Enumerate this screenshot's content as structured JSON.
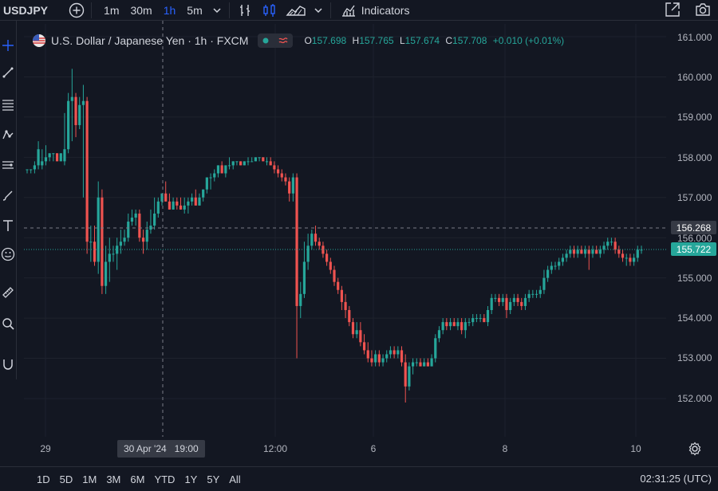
{
  "topbar": {
    "symbol": "USDJPY",
    "intervals": [
      "1m",
      "30m",
      "1h",
      "5m"
    ],
    "active_interval": "1h",
    "indicators_label": "Indicators"
  },
  "legend": {
    "title": "U.S. Dollar / Japanese Yen · 1h · FXCM",
    "open_label": "O",
    "open": "157.698",
    "high_label": "H",
    "high": "157.765",
    "low_label": "L",
    "low": "157.674",
    "close_label": "C",
    "close": "157.708",
    "change": "+0.010 (+0.01%)"
  },
  "price_axis": {
    "labels": [
      "161.000",
      "160.000",
      "159.000",
      "158.000",
      "157.000",
      "156.000",
      "155.000",
      "154.000",
      "153.000",
      "152.000"
    ],
    "crosshair_price": "156.268",
    "last_price": "155.722"
  },
  "time_axis": {
    "labels": [
      "29",
      "12:00",
      "6",
      "8",
      "10"
    ],
    "crosshair_time": "30 Apr '24   19:00"
  },
  "bottombar": {
    "ranges": [
      "1D",
      "5D",
      "1M",
      "3M",
      "6M",
      "YTD",
      "1Y",
      "5Y",
      "All"
    ],
    "clock": "02:31:25 (UTC)"
  },
  "colors": {
    "up": "#26a69a",
    "down": "#ef5350",
    "background": "#131722",
    "accent": "#2962ff"
  },
  "chart_data": {
    "type": "candlestick",
    "ylim": [
      151.5,
      161.2
    ],
    "points": [
      [
        0,
        157.7,
        157.7,
        157.6,
        157.7
      ],
      [
        1,
        157.7,
        157.7,
        157.6,
        157.7
      ],
      [
        2,
        157.7,
        157.9,
        157.6,
        157.8
      ],
      [
        3,
        157.8,
        158.4,
        157.7,
        158.2
      ],
      [
        4,
        157.8,
        158.2,
        157.7,
        157.9
      ],
      [
        5,
        157.9,
        158.3,
        157.8,
        158.0
      ],
      [
        6,
        158.0,
        158.1,
        157.9,
        158.1
      ],
      [
        7,
        158.1,
        158.1,
        157.9,
        158.1
      ],
      [
        8,
        158.1,
        158.1,
        157.9,
        157.9
      ],
      [
        9,
        157.9,
        158.1,
        157.9,
        158.1
      ],
      [
        10,
        157.9,
        159.1,
        157.8,
        158.2
      ],
      [
        11,
        158.2,
        159.6,
        158.1,
        159.4
      ],
      [
        12,
        159.4,
        160.2,
        158.4,
        159.5
      ],
      [
        13,
        159.5,
        159.6,
        158.5,
        158.8
      ],
      [
        14,
        158.8,
        159.5,
        158.7,
        159.3
      ],
      [
        15,
        159.3,
        159.8,
        157.0,
        159.4
      ],
      [
        16,
        159.4,
        159.5,
        155.6,
        155.9
      ],
      [
        17,
        155.9,
        156.3,
        155.4,
        155.9
      ],
      [
        18,
        155.9,
        156.3,
        155.3,
        155.4
      ],
      [
        19,
        155.4,
        157.4,
        155.1,
        157.0
      ],
      [
        20,
        157.0,
        157.2,
        154.6,
        154.8
      ],
      [
        21,
        154.8,
        155.8,
        154.6,
        155.4
      ],
      [
        22,
        155.4,
        156.0,
        154.9,
        155.6
      ],
      [
        23,
        155.6,
        155.8,
        155.4,
        155.6
      ],
      [
        24,
        155.6,
        156.0,
        155.2,
        155.8
      ],
      [
        25,
        155.8,
        156.2,
        155.6,
        155.9
      ],
      [
        26,
        155.9,
        156.2,
        155.8,
        156.0
      ],
      [
        27,
        156.0,
        156.6,
        155.9,
        156.4
      ],
      [
        28,
        156.4,
        156.7,
        156.3,
        156.5
      ],
      [
        29,
        156.5,
        156.7,
        156.3,
        156.6
      ],
      [
        30,
        156.6,
        156.7,
        155.9,
        156.0
      ],
      [
        31,
        156.0,
        156.2,
        155.6,
        155.9
      ],
      [
        32,
        155.9,
        156.4,
        155.7,
        156.2
      ],
      [
        33,
        156.2,
        156.7,
        156.1,
        156.3
      ],
      [
        34,
        156.3,
        157.0,
        156.2,
        156.6
      ],
      [
        35,
        156.6,
        157.0,
        156.5,
        156.9
      ],
      [
        36,
        156.9,
        157.1,
        156.8,
        157.1
      ],
      [
        37,
        157.1,
        157.4,
        156.9,
        156.9
      ],
      [
        38,
        156.9,
        157.1,
        156.7,
        156.7
      ],
      [
        39,
        156.7,
        157.0,
        156.7,
        156.9
      ],
      [
        40,
        156.9,
        157.0,
        156.7,
        156.8
      ],
      [
        41,
        156.8,
        157.0,
        156.7,
        156.7
      ],
      [
        42,
        156.7,
        157.0,
        156.6,
        156.8
      ],
      [
        43,
        156.8,
        157.0,
        156.6,
        156.9
      ],
      [
        44,
        156.9,
        157.1,
        156.8,
        157.0
      ],
      [
        45,
        157.0,
        157.2,
        156.8,
        156.8
      ],
      [
        46,
        156.8,
        157.1,
        156.8,
        157.0
      ],
      [
        47,
        157.0,
        157.2,
        156.9,
        157.2
      ],
      [
        48,
        157.2,
        157.5,
        157.1,
        157.5
      ],
      [
        49,
        157.5,
        157.6,
        157.2,
        157.5
      ],
      [
        50,
        157.5,
        157.7,
        157.4,
        157.6
      ],
      [
        51,
        157.6,
        157.8,
        157.5,
        157.8
      ],
      [
        52,
        157.8,
        157.9,
        157.6,
        157.6
      ],
      [
        53,
        157.6,
        157.8,
        157.5,
        157.8
      ],
      [
        54,
        157.8,
        158.0,
        157.7,
        157.8
      ],
      [
        55,
        157.8,
        157.9,
        157.7,
        157.9
      ],
      [
        56,
        157.9,
        157.9,
        157.8,
        157.9
      ],
      [
        57,
        157.9,
        157.9,
        157.8,
        157.8
      ],
      [
        58,
        157.8,
        157.9,
        157.8,
        157.9
      ],
      [
        59,
        157.9,
        158.0,
        157.8,
        157.9
      ],
      [
        60,
        157.9,
        158.0,
        157.9,
        157.9
      ],
      [
        61,
        157.9,
        158.0,
        157.9,
        158.0
      ],
      [
        62,
        158.0,
        158.0,
        157.9,
        158.0
      ],
      [
        63,
        158.0,
        158.0,
        157.9,
        157.9
      ],
      [
        64,
        157.9,
        158.0,
        157.8,
        157.9
      ],
      [
        65,
        157.9,
        158.0,
        157.8,
        157.8
      ],
      [
        66,
        157.8,
        157.9,
        157.6,
        157.7
      ],
      [
        67,
        157.7,
        157.8,
        157.5,
        157.6
      ],
      [
        68,
        157.6,
        157.7,
        157.4,
        157.5
      ],
      [
        69,
        157.5,
        157.6,
        157.3,
        157.4
      ],
      [
        70,
        157.4,
        157.5,
        156.9,
        157.1
      ],
      [
        71,
        157.1,
        157.6,
        156.9,
        157.5
      ],
      [
        72,
        157.5,
        157.6,
        153.0,
        154.3
      ],
      [
        73,
        154.3,
        154.9,
        154.0,
        154.6
      ],
      [
        74,
        154.6,
        155.9,
        154.5,
        155.4
      ],
      [
        75,
        155.4,
        156.1,
        155.2,
        155.8
      ],
      [
        76,
        155.8,
        156.2,
        155.7,
        156.1
      ],
      [
        77,
        156.1,
        156.3,
        155.8,
        155.9
      ],
      [
        78,
        155.9,
        156.0,
        155.7,
        155.8
      ],
      [
        79,
        155.8,
        155.9,
        155.5,
        155.6
      ],
      [
        80,
        155.6,
        155.7,
        155.3,
        155.4
      ],
      [
        81,
        155.4,
        155.5,
        155.1,
        155.2
      ],
      [
        82,
        155.2,
        155.3,
        154.8,
        154.9
      ],
      [
        83,
        154.9,
        155.0,
        154.6,
        154.7
      ],
      [
        84,
        154.7,
        154.8,
        154.2,
        154.4
      ],
      [
        85,
        154.4,
        154.6,
        154.0,
        154.2
      ],
      [
        86,
        154.2,
        154.3,
        153.8,
        153.9
      ],
      [
        87,
        153.9,
        154.0,
        153.5,
        153.6
      ],
      [
        88,
        153.6,
        153.9,
        153.5,
        153.7
      ],
      [
        89,
        153.7,
        153.9,
        153.3,
        153.4
      ],
      [
        90,
        153.4,
        153.6,
        153.1,
        153.2
      ],
      [
        91,
        153.2,
        153.4,
        152.9,
        153.0
      ],
      [
        92,
        153.0,
        153.2,
        152.8,
        152.9
      ],
      [
        93,
        152.9,
        153.2,
        152.8,
        153.1
      ],
      [
        94,
        153.1,
        153.2,
        152.8,
        152.9
      ],
      [
        95,
        152.9,
        153.1,
        152.8,
        153.0
      ],
      [
        96,
        153.0,
        153.2,
        152.9,
        153.1
      ],
      [
        97,
        153.1,
        153.3,
        153.0,
        153.2
      ],
      [
        98,
        153.2,
        153.3,
        153.0,
        153.1
      ],
      [
        99,
        153.1,
        153.3,
        153.0,
        153.2
      ],
      [
        100,
        153.2,
        153.3,
        152.8,
        152.9
      ],
      [
        101,
        152.9,
        153.1,
        151.9,
        152.3
      ],
      [
        102,
        152.3,
        152.9,
        152.2,
        152.8
      ],
      [
        103,
        152.8,
        153.0,
        152.6,
        152.9
      ],
      [
        104,
        152.9,
        153.0,
        152.8,
        152.9
      ],
      [
        105,
        152.9,
        153.0,
        152.8,
        152.8
      ],
      [
        106,
        152.8,
        153.0,
        152.8,
        152.9
      ],
      [
        107,
        152.9,
        153.0,
        152.8,
        152.8
      ],
      [
        108,
        152.8,
        153.1,
        152.8,
        153.0
      ],
      [
        109,
        153.0,
        153.6,
        152.9,
        153.5
      ],
      [
        110,
        153.5,
        153.8,
        153.4,
        153.7
      ],
      [
        111,
        153.7,
        154.0,
        153.6,
        153.9
      ],
      [
        112,
        153.9,
        154.0,
        153.7,
        153.8
      ],
      [
        113,
        153.8,
        154.0,
        153.7,
        153.9
      ],
      [
        114,
        153.9,
        154.0,
        153.8,
        153.8
      ],
      [
        115,
        153.8,
        154.0,
        153.7,
        153.9
      ],
      [
        116,
        153.9,
        154.0,
        153.6,
        153.7
      ],
      [
        117,
        153.7,
        154.0,
        153.5,
        153.9
      ],
      [
        118,
        153.9,
        154.0,
        153.8,
        153.9
      ],
      [
        119,
        153.9,
        154.1,
        153.8,
        154.0
      ],
      [
        120,
        154.0,
        154.1,
        153.9,
        154.0
      ],
      [
        121,
        154.0,
        154.1,
        153.9,
        154.0
      ],
      [
        122,
        154.0,
        154.1,
        153.9,
        153.9
      ],
      [
        123,
        153.9,
        154.3,
        153.8,
        154.2
      ],
      [
        124,
        154.2,
        154.6,
        154.1,
        154.5
      ],
      [
        125,
        154.5,
        154.6,
        154.4,
        154.5
      ],
      [
        126,
        154.5,
        154.6,
        154.3,
        154.4
      ],
      [
        127,
        154.4,
        154.6,
        154.3,
        154.5
      ],
      [
        128,
        154.5,
        154.6,
        154.0,
        154.2
      ],
      [
        129,
        154.2,
        154.5,
        154.1,
        154.4
      ],
      [
        130,
        154.4,
        154.6,
        154.3,
        154.5
      ],
      [
        131,
        154.5,
        154.6,
        154.3,
        154.4
      ],
      [
        132,
        154.4,
        154.5,
        154.2,
        154.3
      ],
      [
        133,
        154.3,
        154.6,
        154.2,
        154.5
      ],
      [
        134,
        154.5,
        154.7,
        154.4,
        154.6
      ],
      [
        135,
        154.6,
        154.7,
        154.5,
        154.6
      ],
      [
        136,
        154.6,
        154.7,
        154.5,
        154.6
      ],
      [
        137,
        154.6,
        154.8,
        154.5,
        154.7
      ],
      [
        138,
        154.7,
        155.2,
        154.6,
        155.0
      ],
      [
        139,
        155.0,
        155.3,
        154.9,
        155.2
      ],
      [
        140,
        155.2,
        155.4,
        155.1,
        155.3
      ],
      [
        141,
        155.3,
        155.4,
        155.2,
        155.3
      ],
      [
        142,
        155.3,
        155.5,
        155.2,
        155.4
      ],
      [
        143,
        155.4,
        155.6,
        155.3,
        155.5
      ],
      [
        144,
        155.5,
        155.7,
        155.4,
        155.6
      ],
      [
        145,
        155.6,
        155.8,
        155.5,
        155.7
      ],
      [
        146,
        155.7,
        155.8,
        155.5,
        155.6
      ],
      [
        147,
        155.6,
        155.8,
        155.5,
        155.7
      ],
      [
        148,
        155.7,
        155.8,
        155.6,
        155.6
      ],
      [
        149,
        155.6,
        155.8,
        155.5,
        155.7
      ],
      [
        150,
        155.7,
        155.8,
        155.2,
        155.6
      ],
      [
        151,
        155.6,
        155.8,
        155.5,
        155.7
      ],
      [
        152,
        155.7,
        155.8,
        155.6,
        155.6
      ],
      [
        153,
        155.6,
        155.8,
        155.5,
        155.7
      ],
      [
        154,
        155.7,
        155.9,
        155.6,
        155.8
      ],
      [
        155,
        155.8,
        156.0,
        155.7,
        155.9
      ],
      [
        156,
        155.9,
        156.0,
        155.8,
        155.9
      ],
      [
        157,
        155.9,
        156.0,
        155.6,
        155.7
      ],
      [
        158,
        155.7,
        155.8,
        155.5,
        155.6
      ],
      [
        159,
        155.6,
        155.7,
        155.4,
        155.5
      ],
      [
        160,
        155.5,
        155.6,
        155.3,
        155.5
      ],
      [
        161,
        155.5,
        155.6,
        155.3,
        155.4
      ],
      [
        162,
        155.4,
        155.6,
        155.3,
        155.5
      ],
      [
        163,
        155.5,
        155.8,
        155.4,
        155.7
      ],
      [
        164,
        155.7,
        155.8,
        155.6,
        155.7
      ]
    ]
  }
}
